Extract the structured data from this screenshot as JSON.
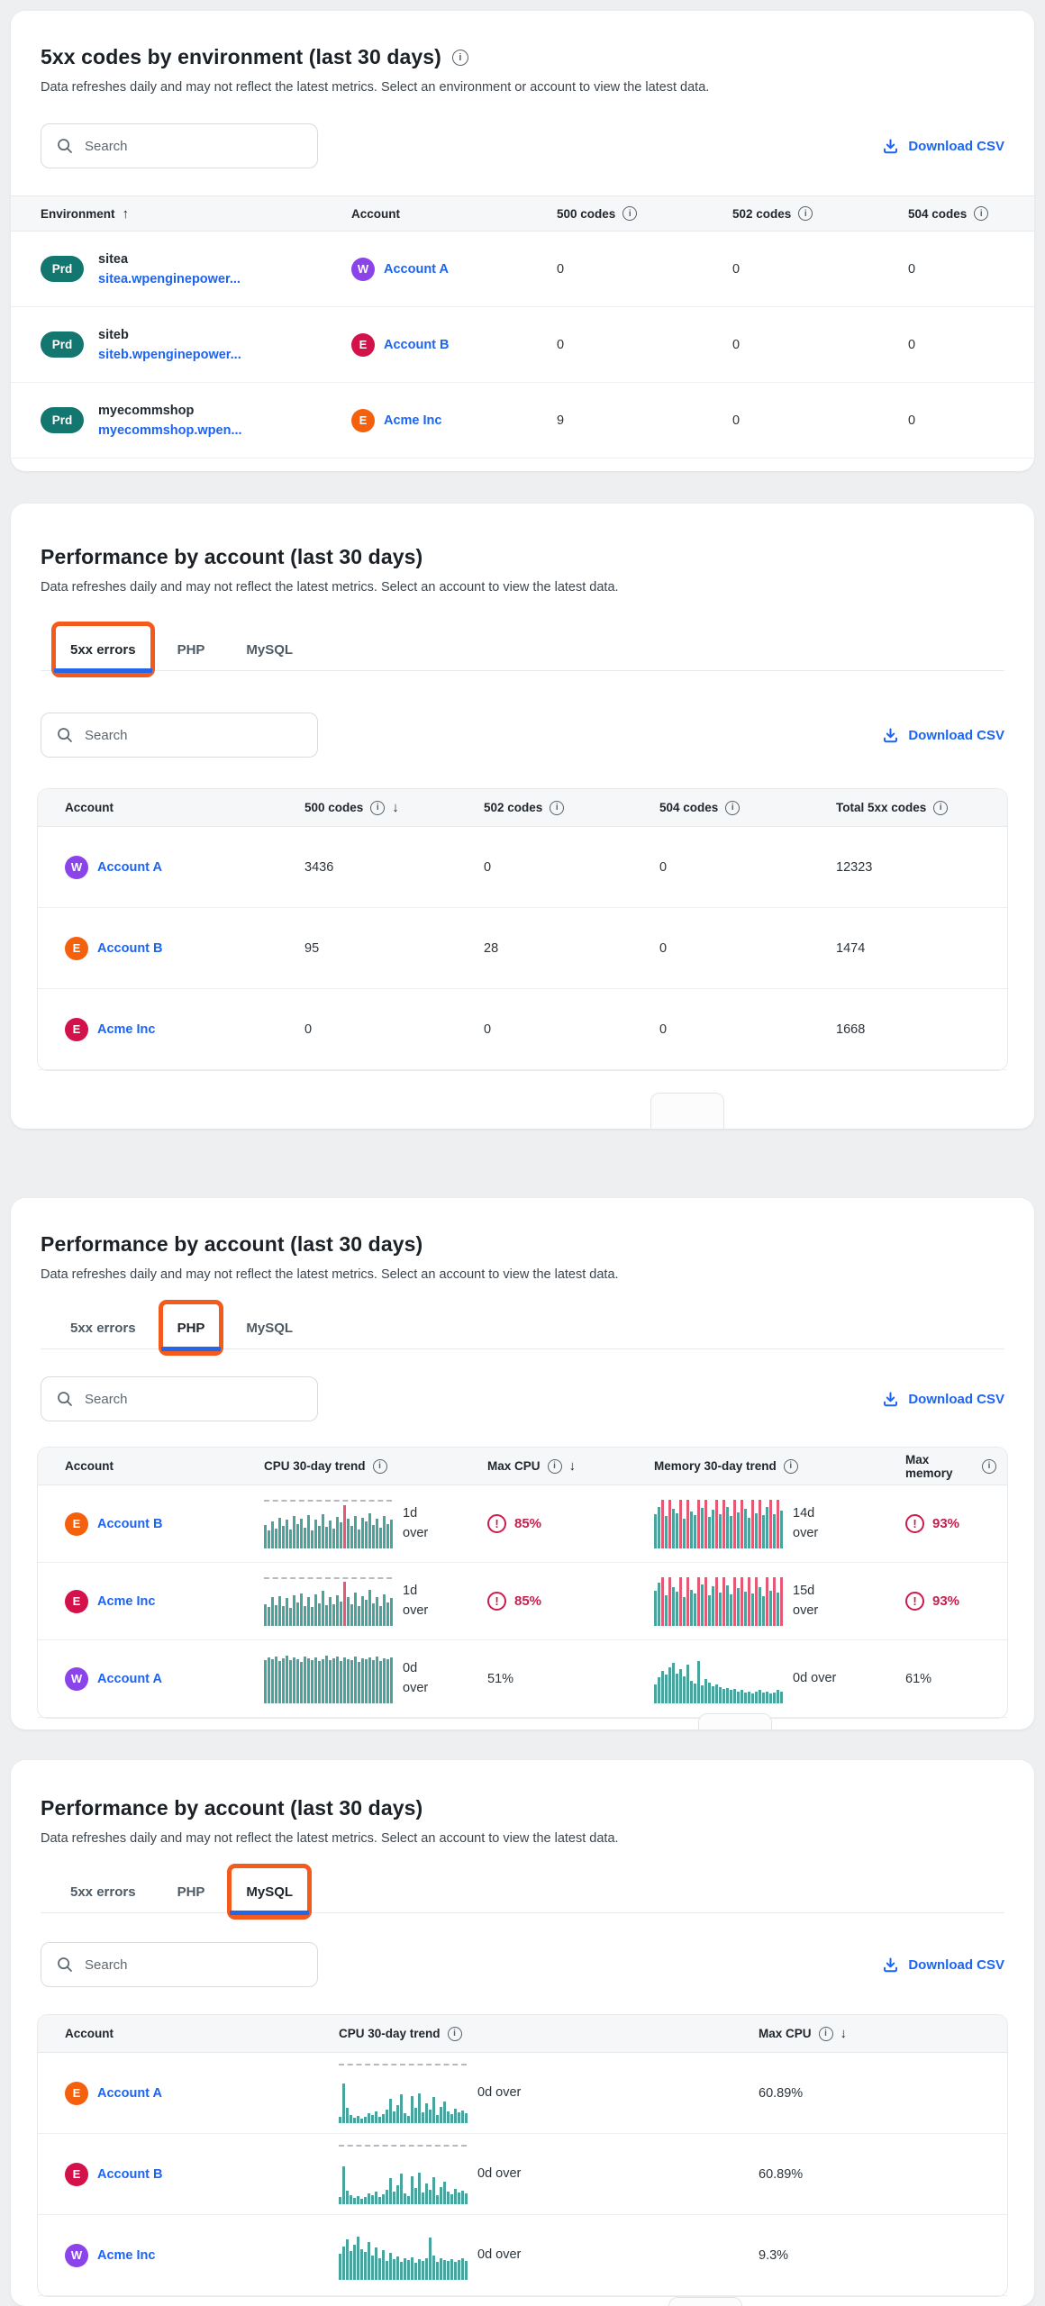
{
  "icons": {
    "info": "i",
    "sort_asc": "↑",
    "sort_desc": "↓",
    "warning": "!"
  },
  "colors": {
    "link_blue": "#1c64f2",
    "tab_underline_blue": "#2565e6",
    "annotation_orange": "#f25b1b",
    "badge_teal": "#13766f",
    "warning_red": "#c81e4e",
    "sparkline_teal": "#4aa49e",
    "sparkline_red": "#e45a74",
    "avatar_purple": "#8b44ea",
    "avatar_orange": "#f4600c",
    "avatar_crimson": "#d3114a"
  },
  "cards": [
    {
      "layout": "env",
      "title": "5xx codes by environment (last 30 days)",
      "title_info": true,
      "subtitle": "Data refreshes daily and may not reflect the latest metrics. Select an environment or account to view the latest data.",
      "search_placeholder": "Search",
      "download_label": "Download CSV",
      "columns": [
        {
          "label": "Environment",
          "sort": "asc"
        },
        {
          "label": "Account"
        },
        {
          "label": "500 codes",
          "info": true
        },
        {
          "label": "502 codes",
          "info": true
        },
        {
          "label": "504 codes",
          "info": true
        }
      ],
      "rows": [
        {
          "badge": "Prd",
          "env_name": "sitea",
          "env_link": "sitea.wpenginepower...",
          "account": {
            "label": "Account A",
            "initial": "W",
            "color": "#8b44ea"
          },
          "codes": [
            "0",
            "0",
            "0"
          ]
        },
        {
          "badge": "Prd",
          "env_name": "siteb",
          "env_link": "siteb.wpenginepower...",
          "account": {
            "label": "Account B",
            "initial": "E",
            "color": "#d3114a"
          },
          "codes": [
            "0",
            "0",
            "0"
          ]
        },
        {
          "badge": "Prd",
          "env_name": "myecommshop",
          "env_link": "myecommshop.wpen...",
          "account": {
            "label": "Acme Inc",
            "initial": "E",
            "color": "#f4600c"
          },
          "codes": [
            "9",
            "0",
            "0"
          ]
        }
      ]
    },
    {
      "layout": "codes",
      "title": "Performance by account (last 30 days)",
      "subtitle": "Data refreshes daily and may not reflect the latest metrics. Select an account to view the latest data.",
      "search_placeholder": "Search",
      "download_label": "Download CSV",
      "tabs": [
        {
          "label": "5xx errors",
          "active": true,
          "annotated": true
        },
        {
          "label": "PHP"
        },
        {
          "label": "MySQL"
        }
      ],
      "columns": [
        {
          "label": "Account"
        },
        {
          "label": "500 codes",
          "info": true,
          "sort": "desc"
        },
        {
          "label": "502 codes",
          "info": true
        },
        {
          "label": "504 codes",
          "info": true
        },
        {
          "label": "Total 5xx codes",
          "info": true
        }
      ],
      "rows": [
        {
          "account": {
            "label": "Account A",
            "initial": "W",
            "color": "#8b44ea"
          },
          "codes": [
            "3436",
            "0",
            "0",
            "12323"
          ]
        },
        {
          "account": {
            "label": "Account B",
            "initial": "E",
            "color": "#f4600c"
          },
          "codes": [
            "95",
            "28",
            "0",
            "1474"
          ]
        },
        {
          "account": {
            "label": "Acme Inc",
            "initial": "E",
            "color": "#d3114a"
          },
          "codes": [
            "0",
            "0",
            "0",
            "1668"
          ]
        }
      ]
    },
    {
      "layout": "php",
      "title": "Performance by account (last 30 days)",
      "subtitle": "Data refreshes daily and may not reflect the latest metrics. Select an account to view the latest data.",
      "search_placeholder": "Search",
      "download_label": "Download CSV",
      "tabs": [
        {
          "label": "5xx errors"
        },
        {
          "label": "PHP",
          "active": true,
          "annotated": true
        },
        {
          "label": "MySQL"
        }
      ],
      "columns": [
        {
          "label": "Account"
        },
        {
          "label": "CPU 30-day trend",
          "info": true
        },
        {
          "label": "Max CPU",
          "info": true,
          "sort": "desc"
        },
        {
          "label": "Memory 30-day trend",
          "info": true
        },
        {
          "label": "Max memory",
          "info": true
        }
      ],
      "rows": [
        {
          "account": {
            "label": "Account B",
            "initial": "E",
            "color": "#f4600c"
          },
          "cpu": {
            "kind": "cpu",
            "threshold": "top",
            "label": "1d over",
            "stack": true,
            "red": [
              22
            ],
            "bars": [
              48,
              36,
              55,
              40,
              62,
              45,
              58,
              38,
              65,
              50,
              60,
              42,
              68,
              36,
              58,
              46,
              70,
              44,
              56,
              40,
              64,
              52,
              88,
              60,
              46,
              66,
              38,
              62,
              55,
              72,
              48,
              60,
              42,
              66,
              50,
              58
            ]
          },
          "max_cpu": {
            "value": "85%",
            "warn": true
          },
          "mem": {
            "kind": "memory",
            "threshold": "none",
            "label": "14d over",
            "stack": true,
            "red": [
              2,
              4,
              7,
              9,
              12,
              14,
              17,
              19,
              22,
              24,
              27,
              29,
              32,
              34
            ],
            "bars": [
              70,
              85,
              100,
              65,
              100,
              80,
              72,
              100,
              60,
              100,
              75,
              68,
              100,
              82,
              100,
              64,
              78,
              100,
              70,
              100,
              85,
              66,
              100,
              74,
              100,
              80,
              62,
              100,
              72,
              100,
              68,
              84,
              100,
              70,
              100,
              76
            ]
          },
          "max_mem": {
            "value": "93%",
            "warn": true
          }
        },
        {
          "account": {
            "label": "Acme Inc",
            "initial": "E",
            "color": "#d3114a"
          },
          "cpu": {
            "kind": "cpu",
            "threshold": "top",
            "label": "1d over",
            "stack": true,
            "red": [
              22
            ],
            "bars": [
              44,
              38,
              58,
              42,
              60,
              40,
              56,
              36,
              62,
              48,
              66,
              40,
              58,
              38,
              64,
              46,
              72,
              42,
              58,
              44,
              62,
              50,
              90,
              58,
              44,
              68,
              40,
              60,
              52,
              74,
              46,
              58,
              40,
              64,
              48,
              56
            ]
          },
          "max_cpu": {
            "value": "85%",
            "warn": true
          },
          "mem": {
            "kind": "memory",
            "threshold": "none",
            "label": "15d over",
            "stack": true,
            "red": [
              2,
              4,
              7,
              9,
              12,
              14,
              17,
              19,
              22,
              24,
              26,
              28,
              31,
              33,
              35
            ],
            "bars": [
              72,
              88,
              100,
              62,
              100,
              78,
              70,
              100,
              58,
              100,
              74,
              66,
              100,
              84,
              100,
              62,
              80,
              100,
              68,
              100,
              82,
              64,
              100,
              76,
              100,
              70,
              100,
              66,
              100,
              78,
              60,
              100,
              72,
              100,
              68,
              100
            ]
          },
          "max_mem": {
            "value": "93%",
            "warn": true
          }
        },
        {
          "account": {
            "label": "Account A",
            "initial": "W",
            "color": "#8b44ea"
          },
          "cpu": {
            "kind": "cpu",
            "threshold": "none",
            "label": "0d over",
            "stack": true,
            "bars": [
              88,
              94,
              90,
              96,
              86,
              92,
              98,
              88,
              94,
              90,
              84,
              96,
              92,
              88,
              94,
              86,
              90,
              98,
              88,
              92,
              96,
              86,
              94,
              90,
              88,
              96,
              84,
              92,
              90,
              94,
              88,
              96,
              86,
              92,
              90,
              94
            ]
          },
          "max_cpu": {
            "value": "51%",
            "warn": false
          },
          "mem": {
            "kind": "memory",
            "threshold": "none",
            "label": "0d over",
            "stack": false,
            "bars": [
              38,
              52,
              66,
              58,
              74,
              82,
              60,
              70,
              54,
              78,
              46,
              40,
              86,
              36,
              50,
              42,
              34,
              38,
              32,
              28,
              30,
              26,
              28,
              24,
              26,
              22,
              24,
              20,
              24,
              26,
              22,
              24,
              20,
              22,
              26,
              24
            ]
          },
          "max_mem": {
            "value": "61%",
            "warn": false
          }
        }
      ]
    },
    {
      "layout": "mysql",
      "title": "Performance by account (last 30 days)",
      "subtitle": "Data refreshes daily and may not reflect the latest metrics. Select an account to view the latest data.",
      "search_placeholder": "Search",
      "download_label": "Download CSV",
      "tabs": [
        {
          "label": "5xx errors"
        },
        {
          "label": "PHP"
        },
        {
          "label": "MySQL",
          "active": true,
          "annotated": true
        }
      ],
      "columns": [
        {
          "label": "Account"
        },
        {
          "label": "CPU 30-day trend",
          "info": true
        },
        {
          "label": "Max CPU",
          "info": true,
          "sort": "desc"
        }
      ],
      "rows": [
        {
          "account": {
            "label": "Account A",
            "initial": "E",
            "color": "#f4600c"
          },
          "cpu": {
            "kind": "cpu",
            "threshold": "float",
            "label": "0d over",
            "stack": false,
            "bars": [
              14,
              88,
              34,
              18,
              12,
              16,
              10,
              14,
              22,
              18,
              26,
              14,
              20,
              30,
              54,
              26,
              40,
              64,
              22,
              16,
              60,
              34,
              66,
              24,
              44,
              30,
              58,
              18,
              36,
              48,
              26,
              20,
              32,
              24,
              28,
              22
            ]
          },
          "max_cpu": {
            "value": "60.89%",
            "warn": false
          }
        },
        {
          "account": {
            "label": "Account B",
            "initial": "E",
            "color": "#d3114a"
          },
          "cpu": {
            "kind": "cpu",
            "threshold": "float",
            "label": "0d over",
            "stack": false,
            "bars": [
              16,
              84,
              30,
              20,
              14,
              18,
              12,
              16,
              24,
              20,
              28,
              16,
              22,
              32,
              58,
              28,
              42,
              68,
              24,
              18,
              62,
              36,
              70,
              26,
              46,
              32,
              60,
              20,
              38,
              50,
              28,
              22,
              34,
              26,
              30,
              24
            ]
          },
          "max_cpu": {
            "value": "60.89%",
            "warn": false
          }
        },
        {
          "account": {
            "label": "Acme Inc",
            "initial": "W",
            "color": "#8b44ea"
          },
          "cpu": {
            "kind": "cpu",
            "threshold": "none",
            "label": "0d over",
            "stack": false,
            "bars": [
              52,
              68,
              82,
              58,
              72,
              88,
              62,
              56,
              76,
              50,
              66,
              44,
              60,
              38,
              54,
              42,
              48,
              36,
              44,
              40,
              46,
              34,
              42,
              38,
              44,
              86,
              50,
              36,
              44,
              40,
              38,
              42,
              36,
              40,
              44,
              38
            ]
          },
          "max_cpu": {
            "value": "9.3%",
            "warn": false
          }
        }
      ]
    }
  ]
}
